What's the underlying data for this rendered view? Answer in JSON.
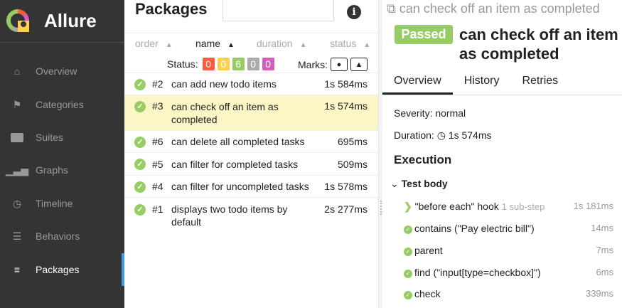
{
  "app": {
    "name": "Allure"
  },
  "sidebar": {
    "items": [
      {
        "label": "Overview",
        "icon": "home-icon"
      },
      {
        "label": "Categories",
        "icon": "flag-icon"
      },
      {
        "label": "Suites",
        "icon": "briefcase-icon"
      },
      {
        "label": "Graphs",
        "icon": "bar-chart-icon"
      },
      {
        "label": "Timeline",
        "icon": "clock-icon"
      },
      {
        "label": "Behaviors",
        "icon": "list-icon"
      },
      {
        "label": "Packages",
        "icon": "align-left-icon",
        "active": true
      }
    ]
  },
  "packages": {
    "title": "Packages",
    "search_value": "",
    "columns": [
      "order",
      "name",
      "duration",
      "status"
    ],
    "status_label": "Status:",
    "status_counts": [
      {
        "value": "0",
        "color": "#fd5a3e"
      },
      {
        "value": "0",
        "color": "#ffd050"
      },
      {
        "value": "6",
        "color": "#97cc64"
      },
      {
        "value": "0",
        "color": "#aaaaaa"
      },
      {
        "value": "0",
        "color": "#d35ebe"
      }
    ],
    "marks_label": "Marks:",
    "rows": [
      {
        "order": "#2",
        "name": "can add new todo items",
        "duration": "1s 584ms"
      },
      {
        "order": "#3",
        "name": "can check off an item as completed",
        "duration": "1s 574ms",
        "selected": true
      },
      {
        "order": "#6",
        "name": "can delete all completed tasks",
        "duration": "695ms"
      },
      {
        "order": "#5",
        "name": "can filter for completed tasks",
        "duration": "509ms"
      },
      {
        "order": "#4",
        "name": "can filter for uncompleted tasks",
        "duration": "1s 578ms"
      },
      {
        "order": "#1",
        "name": "displays two todo items by default",
        "duration": "2s 277ms"
      }
    ]
  },
  "detail": {
    "breadcrumb": "can check off an item as completed",
    "status": "Passed",
    "title": "can check off an item as completed",
    "tabs": [
      "Overview",
      "History",
      "Retries"
    ],
    "severity": "Severity: normal",
    "duration_label": "Duration:",
    "duration": "1s 574ms",
    "execution": "Execution",
    "test_body": "Test body",
    "steps": [
      {
        "name": "\"before each\" hook",
        "sub": "1 sub-step",
        "duration": "1s 181ms"
      },
      {
        "name": "contains (\"Pay electric bill\")",
        "duration": "14ms"
      },
      {
        "name": "parent",
        "duration": "7ms"
      },
      {
        "name": "find (\"input[type=checkbox]\")",
        "duration": "6ms"
      },
      {
        "name": "check",
        "duration": "339ms"
      }
    ]
  }
}
